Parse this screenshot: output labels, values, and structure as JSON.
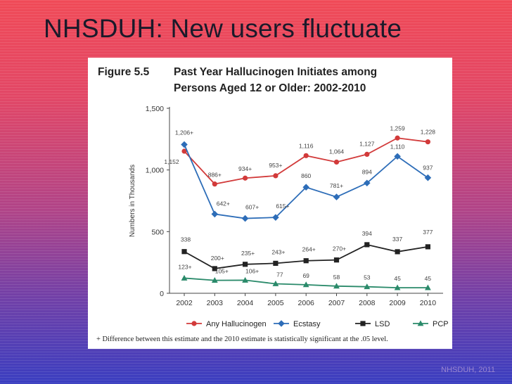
{
  "slide": {
    "title": "NHSDUH: New users fluctuate",
    "source": "NHSDUH, 2011"
  },
  "chart_data": {
    "type": "line",
    "figure_label": "Figure 5.5",
    "title_line1": "Past Year Hallucinogen Initiates among",
    "title_line2": "Persons Aged 12 or Older: 2002-2010",
    "ylabel": "Numbers in Thousands",
    "xlabel": "",
    "ylim": [
      0,
      1500
    ],
    "yticks": [
      0,
      500,
      1000,
      1500
    ],
    "ytick_labels": [
      "0",
      "500",
      "1,000",
      "1,500"
    ],
    "x": [
      "2002",
      "2003",
      "2004",
      "2005",
      "2006",
      "2007",
      "2008",
      "2009",
      "2010"
    ],
    "grid": false,
    "legend_position": "bottom",
    "footnote": "+ Difference between this estimate and the 2010 estimate is statistically significant at the .05 level.",
    "series": [
      {
        "name": "Any Hallucinogen",
        "color": "#d23a3a",
        "marker": "circle",
        "values": [
          1152,
          886,
          934,
          953,
          1116,
          1064,
          1127,
          1259,
          1228
        ],
        "labels": [
          "1,152",
          "886+",
          "934+",
          "953+",
          "1,116",
          "1,064",
          "1,127",
          "1,259",
          "1,228"
        ]
      },
      {
        "name": "Ecstasy",
        "color": "#2d6db8",
        "marker": "diamond",
        "values": [
          1206,
          642,
          607,
          615,
          860,
          781,
          894,
          1110,
          937
        ],
        "labels": [
          "1,206+",
          "642+",
          "607+",
          "615+",
          "860",
          "781+",
          "894",
          "1,110",
          "937"
        ]
      },
      {
        "name": "LSD",
        "color": "#222222",
        "marker": "square",
        "values": [
          338,
          200,
          235,
          243,
          264,
          270,
          394,
          337,
          377
        ],
        "labels": [
          "338",
          "200+",
          "235+",
          "243+",
          "264+",
          "270+",
          "394",
          "337",
          "377"
        ]
      },
      {
        "name": "PCP",
        "color": "#2a8a6a",
        "marker": "triangle",
        "values": [
          123,
          105,
          106,
          77,
          69,
          58,
          53,
          45,
          45
        ],
        "labels": [
          "123+",
          "105+",
          "106+",
          "77",
          "69",
          "58",
          "53",
          "45",
          "45"
        ]
      }
    ]
  }
}
